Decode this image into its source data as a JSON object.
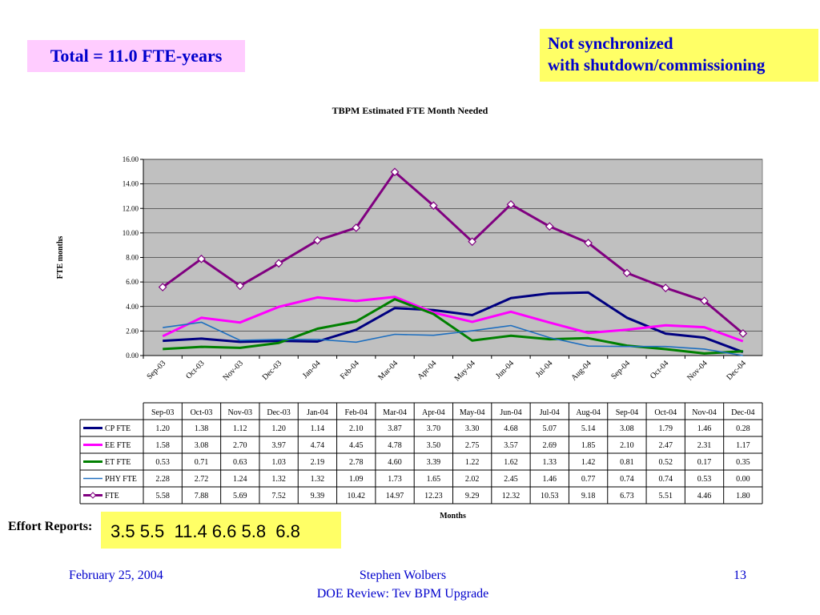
{
  "total_label": "Total = 11.0 FTE-years",
  "note": {
    "line1": "Not synchronized",
    "line2": "with shutdown/commissioning"
  },
  "effort": {
    "label": "Effort Reports:",
    "values": "3.5 5.5  11.4 6.6 5.8  6.8"
  },
  "footer": {
    "date": "February 25, 2004",
    "author": "Stephen Wolbers",
    "event": "DOE Review: Tev BPM Upgrade",
    "page": "13"
  },
  "chart_data": {
    "type": "line",
    "title": "TBPM Estimated FTE Month Needed",
    "xlabel": "Months",
    "ylabel": "FTE months",
    "ylim": [
      0,
      16
    ],
    "yticks": [
      "0.00",
      "2.00",
      "4.00",
      "6.00",
      "8.00",
      "10.00",
      "12.00",
      "14.00",
      "16.00"
    ],
    "grid": true,
    "plot_background": "#c0c0c0",
    "legend": "data-table",
    "categories": [
      "Sep-03",
      "Oct-03",
      "Nov-03",
      "Dec-03",
      "Jan-04",
      "Feb-04",
      "Mar-04",
      "Apr-04",
      "May-04",
      "Jun-04",
      "Jul-04",
      "Aug-04",
      "Sep-04",
      "Oct-04",
      "Nov-04",
      "Dec-04"
    ],
    "series": [
      {
        "name": "CP FTE",
        "color": "#000080",
        "marker": "none",
        "values": [
          "1.20",
          "1.38",
          "1.12",
          "1.20",
          "1.14",
          "2.10",
          "3.87",
          "3.70",
          "3.30",
          "4.68",
          "5.07",
          "5.14",
          "3.08",
          "1.79",
          "1.46",
          "0.28"
        ]
      },
      {
        "name": "EE FTE",
        "color": "#ff00ff",
        "marker": "none",
        "values": [
          "1.58",
          "3.08",
          "2.70",
          "3.97",
          "4.74",
          "4.45",
          "4.78",
          "3.50",
          "2.75",
          "3.57",
          "2.69",
          "1.85",
          "2.10",
          "2.47",
          "2.31",
          "1.17"
        ]
      },
      {
        "name": "ET FTE",
        "color": "#008000",
        "marker": "none",
        "values": [
          "0.53",
          "0.71",
          "0.63",
          "1.03",
          "2.19",
          "2.78",
          "4.60",
          "3.39",
          "1.22",
          "1.62",
          "1.33",
          "1.42",
          "0.81",
          "0.52",
          "0.17",
          "0.35"
        ]
      },
      {
        "name": "PHY FTE",
        "color": "#1f6fbf",
        "marker": "none",
        "values": [
          "2.28",
          "2.72",
          "1.24",
          "1.32",
          "1.32",
          "1.09",
          "1.73",
          "1.65",
          "2.02",
          "2.45",
          "1.46",
          "0.77",
          "0.74",
          "0.74",
          "0.53",
          "0.00"
        ]
      },
      {
        "name": "FTE",
        "color": "#800080",
        "marker": "diamond",
        "values": [
          "5.58",
          "7.88",
          "5.69",
          "7.52",
          "9.39",
          "10.42",
          "14.97",
          "12.23",
          "9.29",
          "12.32",
          "10.53",
          "9.18",
          "6.73",
          "5.51",
          "4.46",
          "1.80"
        ]
      }
    ]
  }
}
